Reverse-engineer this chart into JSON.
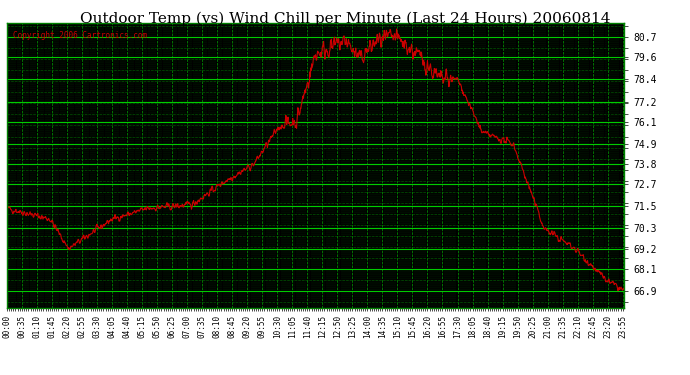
{
  "title": "Outdoor Temp (vs) Wind Chill per Minute (Last 24 Hours) 20060814",
  "copyright_text": "Copyright 2006 Cartronics.com",
  "background_color": "#000000",
  "plot_bg_color": "#000000",
  "line_color": "#cc0000",
  "grid_color_major": "#00cc00",
  "grid_color_minor": "#006600",
  "title_color": "#000000",
  "title_bg": "#ffffff",
  "y_tick_color": "#000000",
  "ylim": [
    66.0,
    81.5
  ],
  "yticks": [
    66.9,
    68.1,
    69.2,
    70.3,
    71.5,
    72.7,
    73.8,
    74.9,
    76.1,
    77.2,
    78.4,
    79.6,
    80.7
  ],
  "n_points": 1440,
  "x_tick_labels": [
    "00:00",
    "00:35",
    "01:10",
    "01:45",
    "02:20",
    "02:55",
    "03:30",
    "04:05",
    "04:40",
    "05:15",
    "05:50",
    "06:25",
    "07:00",
    "07:35",
    "08:10",
    "08:45",
    "09:20",
    "09:55",
    "10:30",
    "11:05",
    "11:40",
    "12:15",
    "12:50",
    "13:25",
    "14:00",
    "14:35",
    "15:10",
    "15:45",
    "16:20",
    "16:55",
    "17:30",
    "18:05",
    "18:40",
    "19:15",
    "19:50",
    "20:25",
    "21:00",
    "21:35",
    "22:10",
    "22:45",
    "23:20",
    "23:55"
  ]
}
